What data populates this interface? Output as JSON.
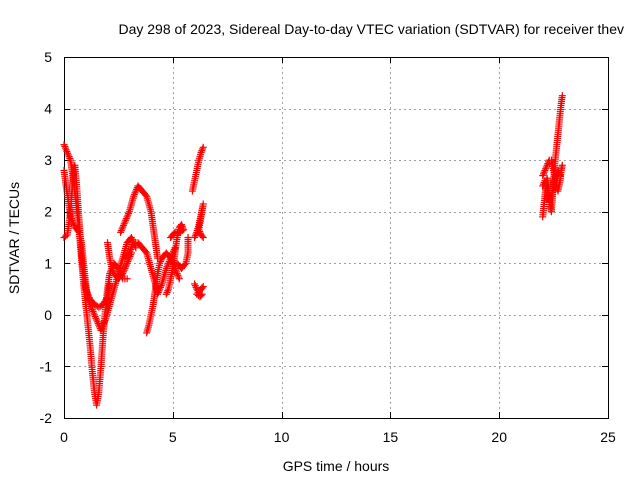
{
  "chart_data": {
    "type": "scatter",
    "title": "Day 298 of 2023, Sidereal Day-to-day VTEC variation (SDTVAR) for receiver thev",
    "xlabel": "GPS time / hours",
    "ylabel": "SDTVAR / TECUs",
    "xlim": [
      0,
      25
    ],
    "ylim": [
      -2,
      5
    ],
    "xticks": [
      0,
      5,
      10,
      15,
      20,
      25
    ],
    "yticks": [
      -2,
      -1,
      0,
      1,
      2,
      3,
      4,
      5
    ],
    "grid": true,
    "marker": "+",
    "color": "#ff0000",
    "series": [
      {
        "name": "SDTVAR",
        "tracks": [
          [
            [
              0.0,
              3.3
            ],
            [
              0.1,
              3.2
            ],
            [
              0.2,
              3.1
            ],
            [
              0.3,
              3.0
            ],
            [
              0.4,
              2.7
            ],
            [
              0.5,
              2.4
            ],
            [
              0.6,
              2.0
            ],
            [
              0.7,
              1.6
            ],
            [
              0.8,
              1.1
            ],
            [
              0.9,
              0.6
            ],
            [
              1.0,
              0.2
            ],
            [
              1.1,
              -0.2
            ],
            [
              1.2,
              -0.6
            ],
            [
              1.3,
              -1.1
            ],
            [
              1.4,
              -1.5
            ],
            [
              1.5,
              -1.75
            ],
            [
              1.6,
              -1.5
            ],
            [
              1.7,
              -1.0
            ],
            [
              1.8,
              -0.4
            ],
            [
              1.9,
              0.1
            ],
            [
              2.0,
              0.5
            ],
            [
              2.1,
              0.8
            ],
            [
              2.3,
              1.0
            ],
            [
              2.5,
              0.9
            ],
            [
              2.7,
              0.7
            ],
            [
              2.9,
              0.7
            ]
          ],
          [
            [
              0.0,
              1.5
            ],
            [
              0.15,
              1.55
            ],
            [
              0.3,
              2.0
            ],
            [
              0.4,
              2.6
            ],
            [
              0.5,
              2.9
            ],
            [
              0.6,
              2.4
            ],
            [
              0.7,
              1.8
            ],
            [
              0.8,
              1.2
            ],
            [
              0.9,
              0.8
            ],
            [
              1.0,
              0.5
            ],
            [
              1.2,
              0.3
            ],
            [
              1.4,
              0.2
            ],
            [
              1.6,
              0.15
            ],
            [
              1.8,
              0.2
            ],
            [
              2.0,
              0.35
            ],
            [
              2.1,
              0.6
            ]
          ],
          [
            [
              0.0,
              2.8
            ],
            [
              0.1,
              2.5
            ],
            [
              0.2,
              2.2
            ],
            [
              0.3,
              1.9
            ],
            [
              0.5,
              1.7
            ],
            [
              0.7,
              1.6
            ],
            [
              0.8,
              1.4
            ],
            [
              0.9,
              1.0
            ],
            [
              1.0,
              0.6
            ],
            [
              1.1,
              0.3
            ],
            [
              1.3,
              0.1
            ],
            [
              1.5,
              -0.1
            ],
            [
              1.7,
              -0.3
            ],
            [
              1.9,
              -0.1
            ],
            [
              2.1,
              0.2
            ],
            [
              2.3,
              0.5
            ],
            [
              2.5,
              0.8
            ],
            [
              2.7,
              1.1
            ],
            [
              2.9,
              1.4
            ],
            [
              3.1,
              1.5
            ],
            [
              3.3,
              1.3
            ]
          ],
          [
            [
              2.0,
              1.4
            ],
            [
              2.1,
              1.1
            ],
            [
              2.2,
              0.9
            ],
            [
              2.3,
              0.8
            ],
            [
              2.5,
              0.7
            ],
            [
              2.7,
              0.8
            ],
            [
              2.9,
              1.0
            ],
            [
              3.1,
              1.2
            ]
          ],
          [
            [
              2.6,
              1.6
            ],
            [
              2.8,
              1.8
            ],
            [
              3.0,
              2.0
            ],
            [
              3.2,
              2.3
            ],
            [
              3.4,
              2.5
            ],
            [
              3.6,
              2.4
            ],
            [
              3.8,
              2.3
            ],
            [
              4.0,
              2.0
            ],
            [
              4.1,
              1.7
            ],
            [
              4.2,
              1.4
            ],
            [
              4.3,
              1.1
            ]
          ],
          [
            [
              2.8,
              1.1
            ],
            [
              3.0,
              1.2
            ],
            [
              3.2,
              1.4
            ],
            [
              3.4,
              1.4
            ],
            [
              3.6,
              1.3
            ],
            [
              3.8,
              1.2
            ],
            [
              4.0,
              0.9
            ],
            [
              4.2,
              0.6
            ],
            [
              4.3,
              0.4
            ],
            [
              4.5,
              0.6
            ],
            [
              4.7,
              0.9
            ],
            [
              4.9,
              1.1
            ],
            [
              5.1,
              1.3
            ]
          ],
          [
            [
              3.8,
              -0.35
            ],
            [
              3.9,
              -0.2
            ],
            [
              4.0,
              0.0
            ],
            [
              4.1,
              0.2
            ],
            [
              4.2,
              0.5
            ],
            [
              4.3,
              0.8
            ],
            [
              4.4,
              1.0
            ],
            [
              4.5,
              1.1
            ],
            [
              4.7,
              1.2
            ],
            [
              4.9,
              1.1
            ],
            [
              5.1,
              0.9
            ],
            [
              5.2,
              0.8
            ],
            [
              5.3,
              0.7
            ]
          ],
          [
            [
              4.7,
              0.4
            ],
            [
              4.8,
              0.5
            ],
            [
              4.9,
              0.7
            ],
            [
              5.0,
              0.9
            ],
            [
              5.1,
              1.2
            ],
            [
              5.2,
              1.5
            ],
            [
              5.3,
              1.7
            ],
            [
              5.4,
              1.75
            ],
            [
              5.5,
              1.65
            ],
            [
              5.3,
              1.6
            ],
            [
              5.1,
              1.6
            ],
            [
              4.9,
              1.5
            ]
          ],
          [
            [
              5.0,
              1.0
            ],
            [
              5.2,
              1.0
            ],
            [
              5.4,
              0.9
            ],
            [
              5.6,
              1.0
            ],
            [
              5.7,
              1.2
            ],
            [
              5.7,
              1.5
            ]
          ],
          [
            [
              5.9,
              2.4
            ],
            [
              6.0,
              2.6
            ],
            [
              6.1,
              2.8
            ],
            [
              6.2,
              3.0
            ],
            [
              6.3,
              3.15
            ],
            [
              6.4,
              3.25
            ]
          ],
          [
            [
              6.0,
              1.5
            ],
            [
              6.1,
              1.6
            ],
            [
              6.2,
              1.75
            ],
            [
              6.3,
              1.95
            ],
            [
              6.4,
              2.15
            ],
            [
              6.2,
              1.65
            ],
            [
              6.3,
              1.55
            ],
            [
              6.4,
              1.5
            ]
          ],
          [
            [
              6.0,
              0.6
            ],
            [
              6.1,
              0.5
            ],
            [
              6.2,
              0.45
            ],
            [
              6.3,
              0.5
            ],
            [
              6.4,
              0.55
            ],
            [
              6.1,
              0.4
            ],
            [
              6.25,
              0.35
            ],
            [
              6.35,
              0.4
            ]
          ],
          [
            [
              22.0,
              1.9
            ],
            [
              22.05,
              2.1
            ],
            [
              22.1,
              2.3
            ],
            [
              22.15,
              2.5
            ],
            [
              22.2,
              2.65
            ],
            [
              22.25,
              2.5
            ],
            [
              22.3,
              2.3
            ],
            [
              22.35,
              2.1
            ],
            [
              22.4,
              2.0
            ],
            [
              22.45,
              2.3
            ],
            [
              22.5,
              2.6
            ],
            [
              22.55,
              2.9
            ],
            [
              22.6,
              3.1
            ],
            [
              22.65,
              3.3
            ],
            [
              22.7,
              3.5
            ],
            [
              22.75,
              3.7
            ],
            [
              22.8,
              3.9
            ],
            [
              22.85,
              4.1
            ],
            [
              22.9,
              4.25
            ]
          ],
          [
            [
              22.0,
              2.7
            ],
            [
              22.1,
              2.8
            ],
            [
              22.2,
              2.9
            ],
            [
              22.3,
              3.0
            ],
            [
              22.4,
              3.0
            ],
            [
              22.5,
              2.8
            ],
            [
              22.6,
              2.6
            ],
            [
              22.7,
              2.4
            ],
            [
              22.8,
              2.6
            ],
            [
              22.85,
              2.8
            ],
            [
              22.9,
              2.9
            ]
          ],
          [
            [
              22.0,
              2.5
            ],
            [
              22.1,
              2.6
            ],
            [
              22.2,
              2.45
            ],
            [
              22.3,
              2.2
            ],
            [
              22.4,
              2.3
            ],
            [
              22.5,
              2.5
            ],
            [
              22.6,
              2.7
            ],
            [
              22.7,
              2.8
            ],
            [
              22.8,
              2.7
            ]
          ]
        ]
      }
    ]
  }
}
